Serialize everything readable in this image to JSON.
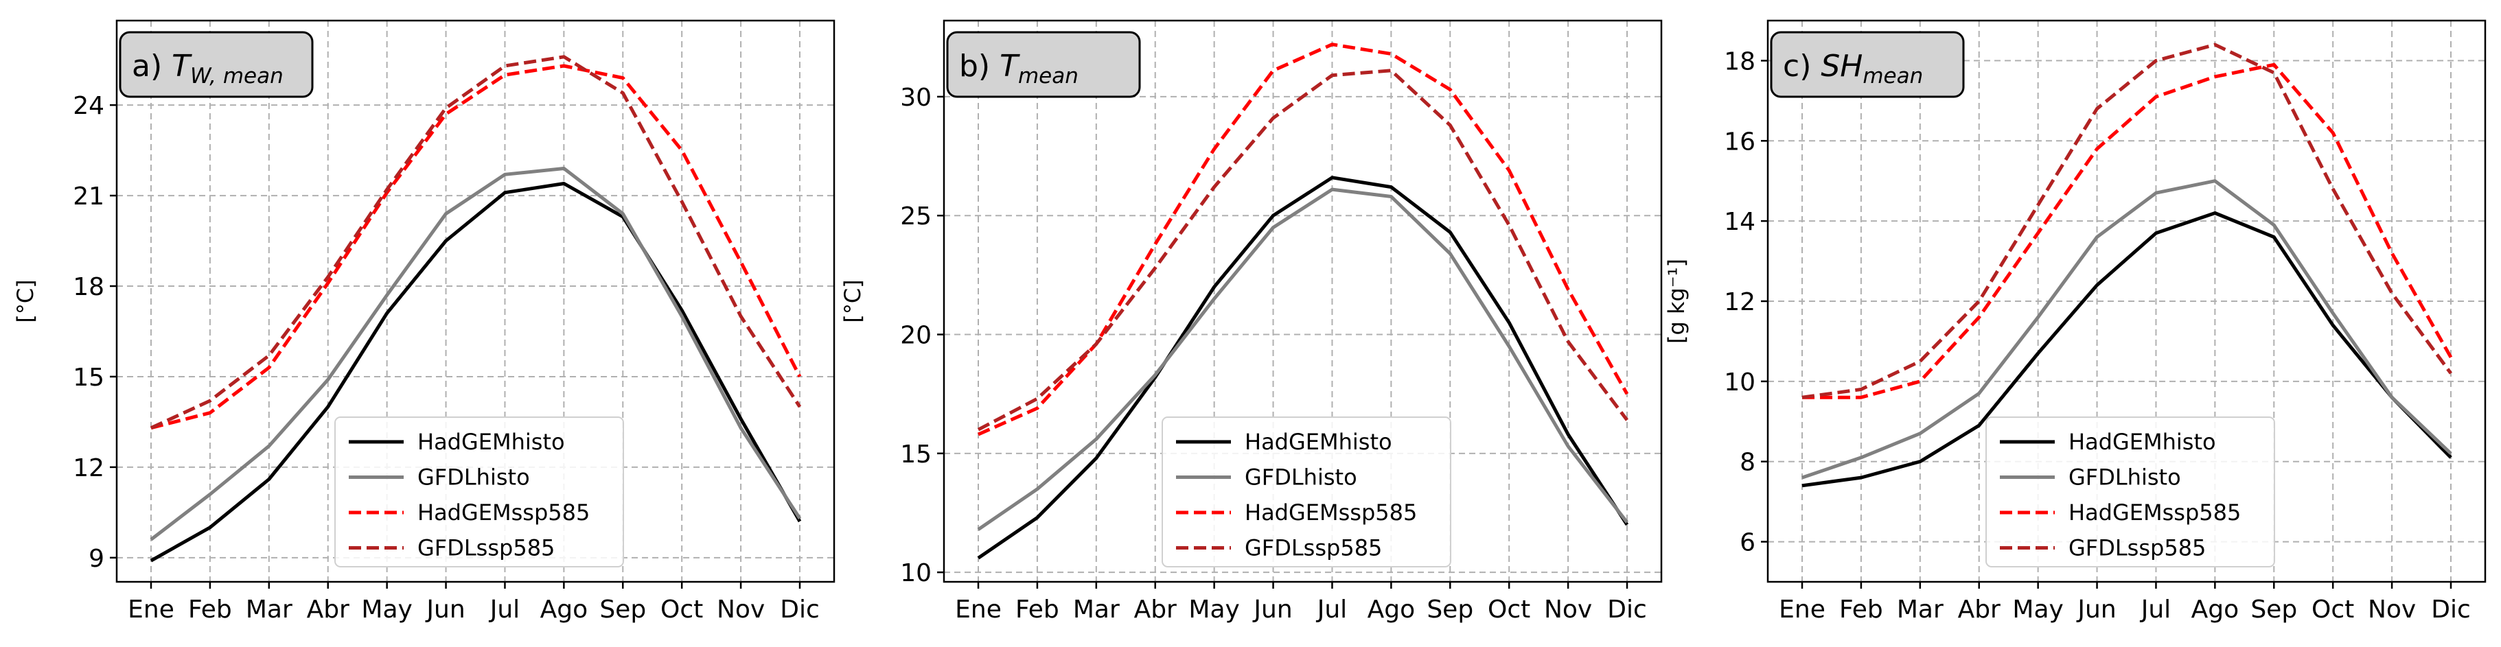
{
  "chart_data": [
    {
      "type": "line",
      "panel_label": "a)",
      "title_symbol": "T",
      "title_subscript": "W, mean",
      "ylabel": "[°C]",
      "ylim": [
        8.2,
        26.8
      ],
      "yticks": [
        9,
        12,
        15,
        18,
        21,
        24
      ],
      "grid": true,
      "legend_position": "lower center",
      "categories": [
        "Ene",
        "Feb",
        "Mar",
        "Abr",
        "May",
        "Jun",
        "Jul",
        "Ago",
        "Sep",
        "Oct",
        "Nov",
        "Dic"
      ],
      "series": [
        {
          "name": "HadGEMhisto",
          "color": "#000000",
          "dashed": false,
          "values": [
            8.9,
            10.0,
            11.6,
            14.0,
            17.1,
            19.5,
            21.1,
            21.4,
            20.3,
            17.2,
            13.6,
            10.2
          ]
        },
        {
          "name": "GFDLhisto",
          "color": "#808080",
          "dashed": false,
          "values": [
            9.6,
            11.1,
            12.7,
            14.9,
            17.7,
            20.4,
            21.7,
            21.9,
            20.4,
            17.0,
            13.3,
            10.3
          ]
        },
        {
          "name": "HadGEMssp585",
          "color": "#ff0000",
          "dashed": true,
          "values": [
            13.3,
            13.8,
            15.3,
            18.1,
            21.1,
            23.7,
            25.0,
            25.3,
            24.9,
            22.5,
            18.8,
            15.0
          ]
        },
        {
          "name": "GFDLssp585",
          "color": "#b22222",
          "dashed": true,
          "values": [
            13.3,
            14.2,
            15.7,
            18.3,
            21.2,
            23.9,
            25.3,
            25.6,
            24.4,
            20.8,
            17.0,
            14.0
          ]
        }
      ]
    },
    {
      "type": "line",
      "panel_label": "b)",
      "title_symbol": "T",
      "title_subscript": "mean",
      "ylabel": "[°C]",
      "ylim": [
        9.6,
        33.2
      ],
      "yticks": [
        10,
        15,
        20,
        25,
        30
      ],
      "grid": true,
      "legend_position": "lower center",
      "categories": [
        "Ene",
        "Feb",
        "Mar",
        "Abr",
        "May",
        "Jun",
        "Jul",
        "Ago",
        "Sep",
        "Oct",
        "Nov",
        "Dic"
      ],
      "series": [
        {
          "name": "HadGEMhisto",
          "color": "#000000",
          "dashed": false,
          "values": [
            10.6,
            12.3,
            14.8,
            18.2,
            22.0,
            25.0,
            26.6,
            26.2,
            24.3,
            20.5,
            15.8,
            12.0
          ]
        },
        {
          "name": "GFDLhisto",
          "color": "#808080",
          "dashed": false,
          "values": [
            11.8,
            13.5,
            15.6,
            18.3,
            21.5,
            24.5,
            26.1,
            25.8,
            23.4,
            19.5,
            15.3,
            12.1
          ]
        },
        {
          "name": "HadGEMssp585",
          "color": "#ff0000",
          "dashed": true,
          "values": [
            15.8,
            16.9,
            19.6,
            23.8,
            27.8,
            31.1,
            32.2,
            31.8,
            30.3,
            26.9,
            21.9,
            17.5
          ]
        },
        {
          "name": "GFDLssp585",
          "color": "#b22222",
          "dashed": true,
          "values": [
            16.0,
            17.3,
            19.6,
            22.8,
            26.2,
            29.1,
            30.9,
            31.1,
            28.8,
            24.6,
            19.7,
            16.4
          ]
        }
      ]
    },
    {
      "type": "line",
      "panel_label": "c)",
      "title_symbol": "SH",
      "title_subscript": "mean",
      "ylabel": "[g kg⁻¹]",
      "ylim": [
        5.0,
        19.0
      ],
      "yticks": [
        6,
        8,
        10,
        12,
        14,
        16,
        18
      ],
      "grid": true,
      "legend_position": "lower center",
      "categories": [
        "Ene",
        "Feb",
        "Mar",
        "Abr",
        "May",
        "Jun",
        "Jul",
        "Ago",
        "Sep",
        "Oct",
        "Nov",
        "Dic"
      ],
      "series": [
        {
          "name": "HadGEMhisto",
          "color": "#000000",
          "dashed": false,
          "values": [
            7.4,
            7.6,
            8.0,
            8.9,
            10.7,
            12.4,
            13.7,
            14.2,
            13.6,
            11.4,
            9.6,
            8.1
          ]
        },
        {
          "name": "GFDLhisto",
          "color": "#808080",
          "dashed": false,
          "values": [
            7.6,
            8.1,
            8.7,
            9.7,
            11.6,
            13.6,
            14.7,
            15.0,
            13.9,
            11.7,
            9.6,
            8.2
          ]
        },
        {
          "name": "HadGEMssp585",
          "color": "#ff0000",
          "dashed": true,
          "values": [
            9.6,
            9.6,
            10.0,
            11.6,
            13.7,
            15.8,
            17.1,
            17.6,
            17.9,
            16.2,
            13.2,
            10.6
          ]
        },
        {
          "name": "GFDLssp585",
          "color": "#b22222",
          "dashed": true,
          "values": [
            9.6,
            9.8,
            10.5,
            12.0,
            14.4,
            16.8,
            18.0,
            18.4,
            17.7,
            14.8,
            12.2,
            10.2
          ]
        }
      ]
    }
  ]
}
